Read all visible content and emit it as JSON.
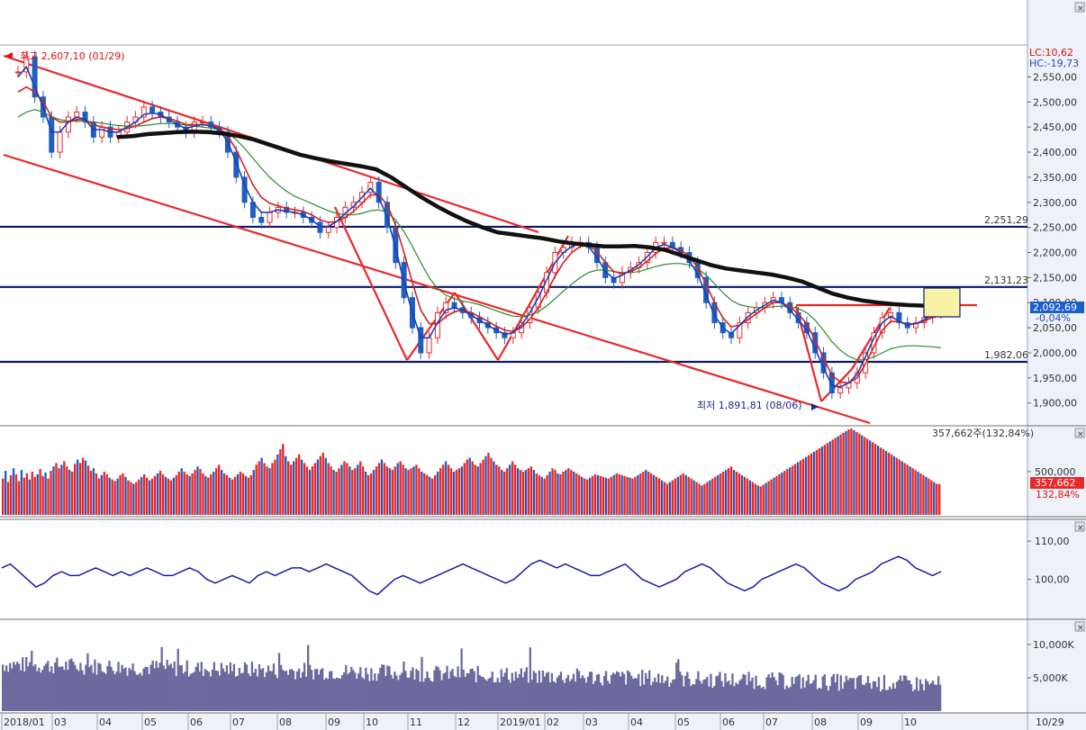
{
  "chart_data": {
    "type": "candlestick",
    "instrument_note": "",
    "price_panel": {
      "ylim": [
        1860,
        2610
      ],
      "y_ticks": [
        "2,550,00",
        "2,500,00",
        "2,450,00",
        "2,400,00",
        "2,350,00",
        "2,300,00",
        "2,250,00",
        "2,200,00",
        "2,150,00",
        "2,100,00",
        "2,050,00",
        "2,000,00",
        "1,950,00",
        "1,900,00"
      ],
      "y_tick_values": [
        2550,
        2500,
        2450,
        2400,
        2350,
        2300,
        2250,
        2200,
        2150,
        2100,
        2050,
        2000,
        1950,
        1900
      ],
      "high_label": "최고 2,607,10 (01/29)",
      "low_label": "최저 1,891,81 (08/06)",
      "lc_label": "LC:10,62",
      "hc_label": "HC:-19,73",
      "current_price_label": "2,092,69",
      "current_change_label": "-0,04%",
      "current_price": 2092.69,
      "horizontal_levels": [
        {
          "value": 2251.29,
          "label": "2,251,29"
        },
        {
          "value": 2131.23,
          "label": "2,131,23"
        },
        {
          "value": 1982.06,
          "label": "1,982,06"
        }
      ],
      "close_series": [
        2560,
        2590,
        2510,
        2470,
        2400,
        2440,
        2470,
        2480,
        2460,
        2430,
        2450,
        2430,
        2440,
        2460,
        2470,
        2490,
        2480,
        2470,
        2460,
        2450,
        2440,
        2460,
        2460,
        2450,
        2440,
        2400,
        2350,
        2300,
        2270,
        2260,
        2280,
        2290,
        2280,
        2280,
        2270,
        2260,
        2240,
        2250,
        2270,
        2290,
        2300,
        2320,
        2340,
        2300,
        2250,
        2180,
        2110,
        2050,
        2000,
        2030,
        2080,
        2100,
        2090,
        2080,
        2070,
        2060,
        2050,
        2040,
        2030,
        2040,
        2060,
        2090,
        2120,
        2160,
        2200,
        2210,
        2220,
        2220,
        2210,
        2180,
        2150,
        2140,
        2160,
        2170,
        2180,
        2200,
        2220,
        2220,
        2210,
        2200,
        2180,
        2150,
        2100,
        2060,
        2040,
        2030,
        2060,
        2080,
        2090,
        2100,
        2110,
        2100,
        2080,
        2060,
        2040,
        2000,
        1960,
        1920,
        1930,
        1940,
        1960,
        2000,
        2040,
        2070,
        2080,
        2060,
        2050,
        2060,
        2070,
        2080,
        2090
      ],
      "ma_short_series": [
        2550,
        2570,
        2530,
        2490,
        2440,
        2440,
        2460,
        2470,
        2465,
        2445,
        2445,
        2440,
        2440,
        2450,
        2460,
        2475,
        2478,
        2475,
        2465,
        2455,
        2447,
        2452,
        2455,
        2452,
        2445,
        2420,
        2380,
        2335,
        2300,
        2280,
        2280,
        2285,
        2282,
        2280,
        2275,
        2265,
        2252,
        2252,
        2262,
        2278,
        2292,
        2310,
        2328,
        2310,
        2270,
        2210,
        2140,
        2080,
        2030,
        2030,
        2060,
        2085,
        2090,
        2085,
        2075,
        2065,
        2055,
        2045,
        2037,
        2040,
        2055,
        2080,
        2110,
        2145,
        2180,
        2200,
        2212,
        2218,
        2212,
        2190,
        2162,
        2148,
        2155,
        2165,
        2176,
        2192,
        2210,
        2216,
        2210,
        2200,
        2183,
        2157,
        2115,
        2075,
        2050,
        2038,
        2055,
        2072,
        2085,
        2095,
        2105,
        2100,
        2085,
        2066,
        2045,
        2008,
        1970,
        1935,
        1932,
        1940,
        1957,
        1992,
        2030,
        2060,
        2073,
        2063,
        2055,
        2058,
        2066,
        2076,
        2086
      ],
      "ma_mid_series": [
        2520,
        2530,
        2520,
        2500,
        2470,
        2460,
        2460,
        2465,
        2465,
        2455,
        2450,
        2447,
        2445,
        2447,
        2452,
        2460,
        2467,
        2470,
        2467,
        2462,
        2455,
        2455,
        2455,
        2453,
        2448,
        2432,
        2405,
        2370,
        2335,
        2310,
        2298,
        2293,
        2288,
        2285,
        2282,
        2275,
        2265,
        2260,
        2262,
        2270,
        2282,
        2298,
        2315,
        2315,
        2295,
        2255,
        2200,
        2140,
        2085,
        2058,
        2058,
        2072,
        2082,
        2085,
        2080,
        2072,
        2063,
        2053,
        2045,
        2043,
        2050,
        2067,
        2090,
        2120,
        2153,
        2180,
        2200,
        2212,
        2214,
        2202,
        2180,
        2162,
        2158,
        2162,
        2170,
        2183,
        2198,
        2208,
        2210,
        2205,
        2192,
        2170,
        2137,
        2100,
        2070,
        2052,
        2055,
        2066,
        2078,
        2090,
        2100,
        2100,
        2092,
        2077,
        2058,
        2025,
        1990,
        1955,
        1942,
        1940,
        1950,
        1978,
        2012,
        2045,
        2063,
        2062,
        2057,
        2058,
        2063,
        2071,
        2080
      ],
      "ma_long_series": [
        2470,
        2480,
        2485,
        2480,
        2470,
        2465,
        2462,
        2462,
        2462,
        2460,
        2458,
        2455,
        2453,
        2452,
        2452,
        2453,
        2455,
        2457,
        2457,
        2456,
        2454,
        2452,
        2450,
        2448,
        2445,
        2438,
        2425,
        2408,
        2388,
        2368,
        2350,
        2335,
        2322,
        2312,
        2305,
        2298,
        2290,
        2283,
        2278,
        2275,
        2275,
        2278,
        2283,
        2285,
        2280,
        2265,
        2242,
        2212,
        2180,
        2150,
        2128,
        2115,
        2108,
        2103,
        2100,
        2096,
        2090,
        2084,
        2078,
        2073,
        2072,
        2075,
        2082,
        2093,
        2108,
        2123,
        2137,
        2150,
        2160,
        2165,
        2165,
        2162,
        2160,
        2160,
        2162,
        2167,
        2172,
        2176,
        2178,
        2178,
        2175,
        2168,
        2155,
        2138,
        2120,
        2105,
        2096,
        2092,
        2090,
        2090,
        2092,
        2093,
        2092,
        2088,
        2080,
        2065,
        2045,
        2022,
        2005,
        1993,
        1986,
        1986,
        1992,
        2000,
        2008,
        2012,
        2014,
        2014,
        2013,
        2012,
        2010
      ],
      "ma_240_series": [
        2430,
        2432,
        2436,
        2438,
        2440,
        2441,
        2440,
        2437,
        2432,
        2425,
        2415,
        2405,
        2395,
        2388,
        2382,
        2377,
        2372,
        2366,
        2350,
        2330,
        2310,
        2292,
        2276,
        2262,
        2250,
        2240,
        2236,
        2232,
        2228,
        2222,
        2218,
        2215,
        2212,
        2212,
        2213,
        2210,
        2205,
        2195,
        2185,
        2175,
        2168,
        2164,
        2160,
        2156,
        2150,
        2142,
        2130,
        2118,
        2110,
        2104,
        2100,
        2097,
        2095,
        2094,
        2093
      ]
    },
    "volume_panel": {
      "label": "357,662주(132,84%)",
      "y_ticks": [
        "500,000"
      ],
      "y_tick_values": [
        500000
      ],
      "ylim": [
        0,
        1000000
      ],
      "current_label": "357,662",
      "current_pct": "132,84%",
      "values": [
        420,
        510,
        380,
        460,
        540,
        470,
        390,
        520,
        430,
        480,
        410,
        500,
        440,
        470,
        530,
        450,
        490,
        420,
        510,
        560,
        600,
        540,
        580,
        620,
        560,
        520,
        500,
        590,
        640,
        600,
        660,
        630,
        570,
        510,
        540,
        480,
        420,
        460,
        500,
        470,
        430,
        410,
        390,
        420,
        460,
        480,
        440,
        400,
        380,
        360,
        380,
        410,
        440,
        470,
        430,
        400,
        420,
        450,
        480,
        510,
        470,
        440,
        420,
        400,
        430,
        460,
        500,
        540,
        500,
        470,
        450,
        480,
        520,
        560,
        530,
        480,
        450,
        430,
        470,
        500,
        540,
        580,
        520,
        480,
        460,
        430,
        410,
        440,
        470,
        500,
        480,
        450,
        430,
        460,
        520,
        580,
        620,
        660,
        600,
        560,
        540,
        600,
        640,
        700,
        760,
        820,
        680,
        620,
        580,
        620,
        660,
        700,
        640,
        600,
        560,
        520,
        560,
        600,
        640,
        680,
        720,
        660,
        600,
        560,
        520,
        500,
        540,
        580,
        620,
        600,
        560,
        520,
        540,
        580,
        620,
        560,
        500,
        460,
        480,
        520,
        560,
        600,
        640,
        600,
        560,
        540,
        520,
        560,
        600,
        620,
        580,
        540,
        520,
        540,
        560,
        580,
        540,
        500,
        480,
        460,
        440,
        420,
        460,
        500,
        540,
        580,
        620,
        580,
        540,
        500,
        520,
        540,
        560,
        600,
        640,
        660,
        620,
        580,
        560,
        600,
        640,
        680,
        720,
        660,
        620,
        580,
        560,
        520,
        500,
        540,
        580,
        620,
        580,
        540,
        520,
        500,
        520,
        540,
        560,
        520,
        480,
        460,
        440,
        420,
        460,
        500,
        540,
        520,
        480,
        470,
        500,
        520,
        540,
        520,
        500,
        480,
        460,
        440,
        420,
        410,
        430,
        450,
        470,
        460,
        450,
        440,
        430,
        420,
        440,
        460,
        480,
        470,
        460,
        450,
        440,
        430,
        420,
        440,
        460,
        480,
        500,
        520,
        500,
        480,
        460,
        440,
        420,
        400,
        380,
        360,
        380,
        400,
        420,
        440,
        460,
        480,
        460,
        440,
        420,
        400,
        380,
        360,
        340,
        360,
        380,
        400,
        420,
        440,
        460,
        480,
        500,
        520,
        540,
        560,
        520,
        500,
        480,
        460,
        440,
        420,
        400,
        380,
        360,
        340,
        330,
        350,
        370,
        390,
        410,
        430,
        450,
        470,
        490,
        510,
        530,
        550,
        570,
        590,
        610,
        630,
        650,
        670,
        690,
        710,
        730,
        750,
        770,
        790,
        810,
        830,
        850,
        870,
        890,
        910,
        930,
        950,
        970,
        990,
        1000,
        980,
        960,
        940,
        920,
        900,
        880,
        860,
        840,
        820,
        800,
        780,
        760,
        740,
        720,
        700,
        680,
        660,
        640,
        620,
        600,
        580,
        560,
        540,
        520,
        500,
        480,
        460,
        440,
        420,
        400,
        380,
        360,
        357
      ],
      "red_or_blue": "alternating by close vs prev"
    },
    "indicator_panel": {
      "y_ticks": [
        "110,00",
        "100,00"
      ],
      "y_tick_values": [
        110,
        100
      ],
      "ylim": [
        90,
        115
      ],
      "series": [
        {
          "values": [
            103,
            104,
            102,
            100,
            98,
            99,
            101,
            102,
            101,
            101,
            102,
            103,
            102,
            101,
            102,
            101,
            102,
            103,
            102,
            101,
            101,
            102,
            103,
            102,
            100,
            99,
            100,
            101,
            100,
            99,
            101,
            102,
            101,
            102,
            103,
            103,
            102,
            103,
            104,
            103,
            102,
            101,
            99,
            97,
            96,
            98,
            100,
            101,
            100,
            99,
            100,
            101,
            102,
            103,
            104,
            103,
            102,
            101,
            100,
            99,
            100,
            102,
            104,
            105,
            104,
            103,
            104,
            103,
            102,
            101,
            101,
            102,
            103,
            104,
            102,
            100,
            99,
            98,
            99,
            100,
            102,
            103,
            104,
            103,
            101,
            99,
            98,
            97,
            98,
            100,
            101,
            102,
            103,
            104,
            103,
            101,
            99,
            98,
            97,
            98,
            100,
            101,
            102,
            104,
            105,
            106,
            105,
            103,
            102,
            101,
            102
          ]
        }
      ]
    },
    "volume2_panel": {
      "y_ticks": [
        "10,000K",
        "5,000K"
      ],
      "y_tick_values": [
        10000,
        5000
      ],
      "ylim": [
        0,
        13500
      ]
    },
    "x_axis": {
      "ticks": [
        "2018/01",
        "03",
        "04",
        "05",
        "06",
        "07",
        "08",
        "09",
        "10",
        "11",
        "12",
        "2019/01",
        "02",
        "03",
        "04",
        "05",
        "06",
        "07",
        "08",
        "09",
        "10"
      ],
      "right_label": "10/29"
    },
    "colors": {
      "up": "#e8282b",
      "down": "#1f5fbf",
      "ma_short": "#1a3fb8",
      "ma_mid": "#d61f1f",
      "ma_long": "#2e8b2e",
      "ma_240": "#111111",
      "level_line": "#0a1a6b",
      "trend_line": "#e8282b",
      "indicator_line": "#1a1aa8",
      "volume2": "#6a6a9e",
      "highlight_box": "#f7f2a6"
    }
  }
}
